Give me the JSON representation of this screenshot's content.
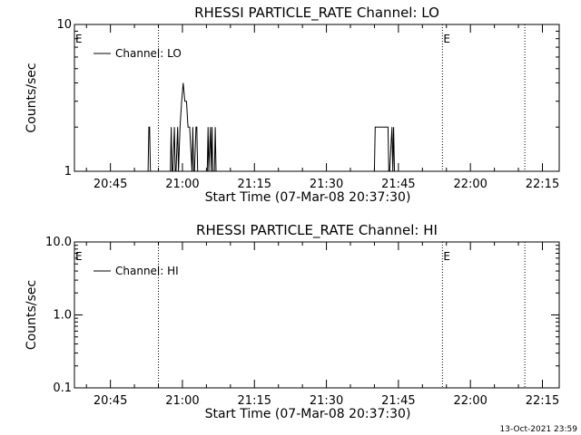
{
  "chart_data": [
    {
      "type": "line",
      "title": "RHESSI PARTICLE_RATE Channel: LO",
      "xlabel": "Start Time (07-Mar-08 20:37:30)",
      "ylabel": "Counts/sec",
      "yscale": "log",
      "ylim": [
        1,
        10
      ],
      "y_ticks": [
        "1",
        "10"
      ],
      "xlim": [
        "20:37:30",
        "22:18:30"
      ],
      "x_ticks": [
        "20:45",
        "21:00",
        "21:15",
        "21:30",
        "21:45",
        "22:00",
        "22:15"
      ],
      "legend": {
        "position": "top-left",
        "entries": [
          "Channel: LO"
        ]
      },
      "series": [
        {
          "name": "Channel: LO",
          "color": "#000000",
          "x": [
            "20:52:50",
            "20:53:00",
            "20:53:10",
            "20:53:20",
            "20:53:30",
            "20:57:30",
            "20:57:40",
            "20:57:50",
            "20:58:00",
            "20:58:20",
            "20:58:30",
            "20:58:40",
            "20:59:00",
            "20:59:10",
            "20:59:30",
            "20:59:50",
            "21:00:10",
            "21:00:30",
            "21:00:50",
            "21:01:10",
            "21:01:30",
            "21:02:00",
            "21:02:10",
            "21:02:20",
            "21:02:30",
            "21:02:50",
            "21:03:00",
            "21:03:10",
            "21:03:20",
            "21:05:10",
            "21:05:20",
            "21:05:30",
            "21:05:50",
            "21:06:00",
            "21:06:10",
            "21:06:20",
            "21:06:40",
            "21:06:50",
            "21:07:00",
            "21:40:00",
            "21:40:10",
            "21:40:20",
            "21:42:50",
            "21:43:00",
            "21:43:10",
            "21:43:40",
            "21:43:50",
            "21:44:00",
            "21:44:10"
          ],
          "y": [
            1,
            2,
            2,
            1,
            1,
            1,
            2,
            1,
            1,
            2,
            1,
            1,
            2,
            1,
            2,
            3,
            4,
            3,
            3,
            2,
            2,
            1,
            2,
            1,
            1,
            2,
            2,
            1,
            1,
            1,
            2,
            1,
            2,
            1,
            2,
            1,
            1,
            2,
            1,
            1,
            2,
            2,
            2,
            1,
            1,
            2,
            1,
            2,
            1
          ]
        }
      ],
      "annotations": [
        {
          "label": "E",
          "x": "20:37:30"
        },
        {
          "label": "E",
          "x": "21:54:10"
        }
      ],
      "vlines_dotted": [
        "20:55:00",
        "21:54:10",
        "22:11:20"
      ]
    },
    {
      "type": "line",
      "title": "RHESSI PARTICLE_RATE Channel: HI",
      "xlabel": "Start Time (07-Mar-08 20:37:30)",
      "ylabel": "Counts/sec",
      "yscale": "log",
      "ylim": [
        0.1,
        10
      ],
      "y_ticks": [
        "0.1",
        "1.0",
        "10.0"
      ],
      "xlim": [
        "20:37:30",
        "22:18:30"
      ],
      "x_ticks": [
        "20:45",
        "21:00",
        "21:15",
        "21:30",
        "21:45",
        "22:00",
        "22:15"
      ],
      "legend": {
        "position": "top-left",
        "entries": [
          "Channel: HI"
        ]
      },
      "series": [
        {
          "name": "Channel: HI",
          "color": "#000000",
          "x": [],
          "y": []
        }
      ],
      "annotations": [
        {
          "label": "E",
          "x": "20:37:30"
        },
        {
          "label": "E",
          "x": "21:54:10"
        }
      ],
      "vlines_dotted": [
        "20:55:00",
        "21:54:10",
        "22:11:20"
      ]
    }
  ],
  "footer": {
    "timestamp": "13-Oct-2021 23:59"
  }
}
